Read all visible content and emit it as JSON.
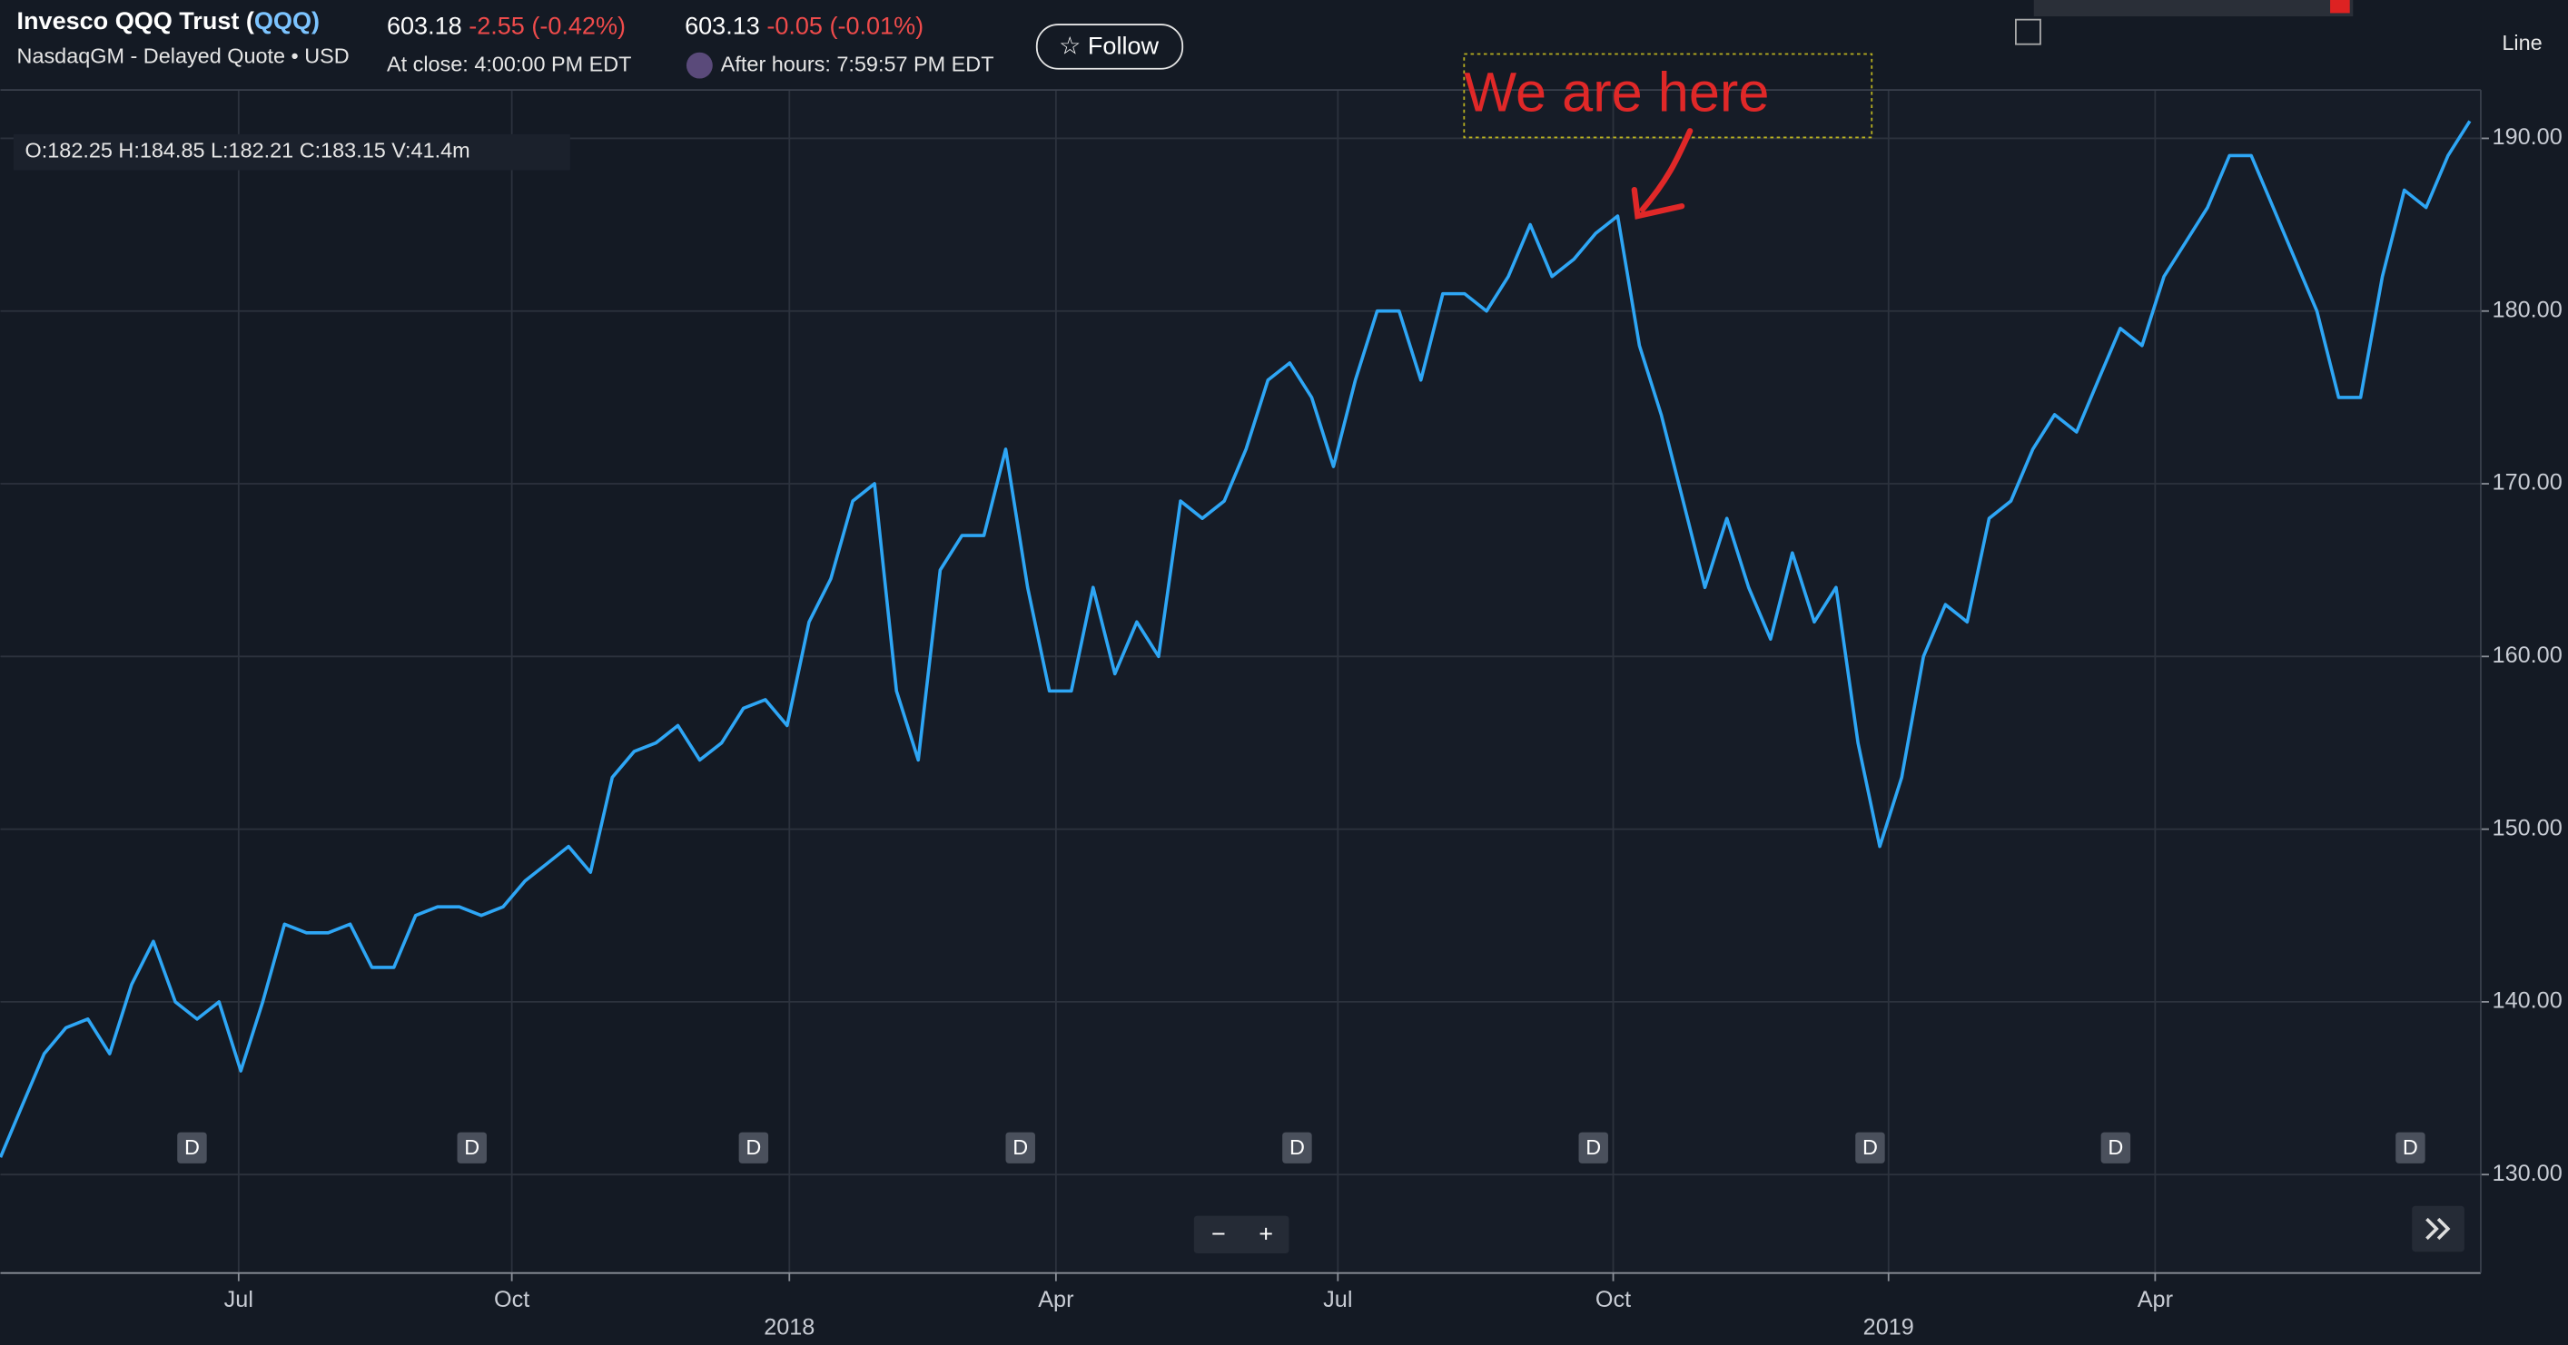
{
  "header": {
    "name": "Invesco QQQ Trust (",
    "symbol": "QQQ)",
    "exchange": "NasdaqGM - Delayed Quote • USD",
    "close_price": "603.18",
    "close_change": "-2.55",
    "close_change_pct": "(-0.42%)",
    "close_time": "At close: 4:00:00 PM EDT",
    "after_price": "603.13",
    "after_change": "-0.05",
    "after_change_pct": "(-0.01%)",
    "after_time": "After hours: 7:59:57 PM EDT",
    "follow": "☆ Follow",
    "chart_type": "Line"
  },
  "controls": {
    "zoom_out": "−",
    "zoom_in": "+"
  },
  "chart_data": {
    "type": "line",
    "legend": [
      "O:182.25",
      "H:184.85",
      "L:182.21",
      "C:183.15",
      "V:41.4m"
    ],
    "annotation": "We are here",
    "color": "#2ea6f5",
    "grid": true,
    "values": [
      131,
      134,
      137,
      138.5,
      139,
      137,
      141,
      143.5,
      140,
      139,
      140,
      136,
      140,
      144.5,
      144,
      144,
      144.5,
      142,
      142,
      145,
      145.5,
      145.5,
      145,
      145.5,
      147,
      148,
      149,
      147.5,
      153,
      154.5,
      155,
      156,
      154,
      155,
      157,
      157.5,
      156,
      162,
      164.5,
      169,
      170,
      158,
      154,
      165,
      167,
      167,
      172,
      164,
      158,
      158,
      164,
      159,
      162,
      160,
      169,
      168,
      169,
      172,
      176,
      177,
      175,
      171,
      176,
      180,
      180,
      176,
      181,
      181,
      180,
      182,
      185,
      182,
      183,
      184.5,
      185.5,
      178,
      174,
      169,
      164,
      168,
      164,
      161,
      166,
      162,
      164,
      155,
      149,
      153,
      160,
      163,
      162,
      168,
      169,
      172,
      174,
      173,
      176,
      179,
      178,
      182,
      184,
      186,
      189,
      189,
      186,
      183,
      180,
      175,
      175,
      182,
      187,
      186,
      189,
      191
    ],
    "xlim": [
      0,
      113.5
    ],
    "xticks": [
      {
        "value": 10.9,
        "label": "Jul"
      },
      {
        "value": 23.4,
        "label": "Oct"
      },
      {
        "value": 36.1,
        "label": "2018"
      },
      {
        "value": 48.3,
        "label": "Apr"
      },
      {
        "value": 61.2,
        "label": "Jul"
      },
      {
        "value": 73.8,
        "label": "Oct"
      },
      {
        "value": 86.4,
        "label": "2019"
      },
      {
        "value": 98.6,
        "label": "Apr"
      }
    ],
    "ylim": [
      124.3,
      192.8
    ],
    "yticks": [
      {
        "value": 130,
        "label": "130.00"
      },
      {
        "value": 140,
        "label": "140.00"
      },
      {
        "value": 150,
        "label": "150.00"
      },
      {
        "value": 160,
        "label": "160.00"
      },
      {
        "value": 170,
        "label": "170.00"
      },
      {
        "value": 180,
        "label": "180.00"
      },
      {
        "value": 190,
        "label": "190.00"
      }
    ],
    "dividend_markers": [
      "D",
      "D",
      "D",
      "D",
      "D",
      "D",
      "D",
      "D",
      "D"
    ]
  }
}
